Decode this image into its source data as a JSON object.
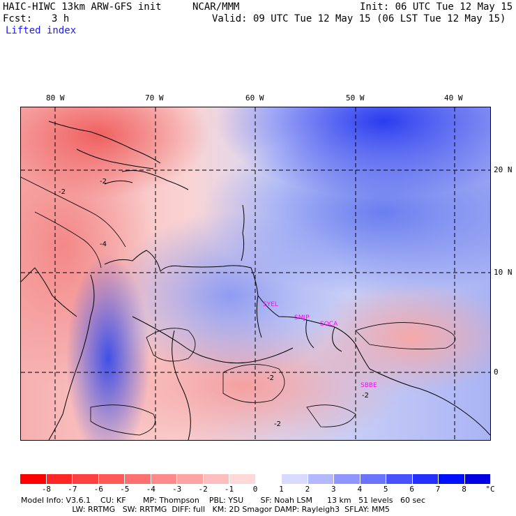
{
  "header": {
    "model_title": "HAIC-HIWC 13km ARW-GFS init",
    "org": "NCAR/MMM",
    "init": "Init: 06 UTC Tue 12 May 15",
    "fcst_label": "Fcst:",
    "fcst_value": "3 h",
    "valid": "Valid: 09 UTC Tue 12 May 15 (06 LST Tue 12 May 15)",
    "field": "Lifted index"
  },
  "map": {
    "lon_labels": [
      "80 W",
      "70 W",
      "60 W",
      "50 W",
      "40 W"
    ],
    "lat_labels": [
      "20 N",
      "10 N",
      "0"
    ],
    "station_labels": [
      "SYEL",
      "SMJP",
      "SOCA",
      "SBBE"
    ],
    "contour_labels": [
      "-2",
      "-2",
      "-4",
      "-2",
      "-2",
      "-2"
    ]
  },
  "colorbar": {
    "unit": "°C",
    "ticks": [
      "-8",
      "-7",
      "-6",
      "-5",
      "-4",
      "-3",
      "-2",
      "-1",
      "0",
      "1",
      "2",
      "3",
      "4",
      "5",
      "6",
      "7",
      "8"
    ],
    "colors": [
      "#ff0000",
      "#ff2626",
      "#ff4040",
      "#ff5858",
      "#ff7070",
      "#ff8a8a",
      "#ffa4a4",
      "#ffbebe",
      "#ffd8d8",
      "#ffffff",
      "#d8daff",
      "#b4b8ff",
      "#8f96ff",
      "#6b74ff",
      "#4752ff",
      "#2430ff",
      "#0010ff",
      "#0000e0"
    ]
  },
  "footer": {
    "line1": "Model Info: V3.6.1    CU: KF       MP: Thompson    PBL: YSU       SF: Noah LSM      13 km   51 levels   60 sec",
    "line2": "                     LW: RRTMG   SW: RRTMG  DIFF: full   KM: 2D Smagor DAMP: Rayleigh3  SFLAY: MM5"
  }
}
